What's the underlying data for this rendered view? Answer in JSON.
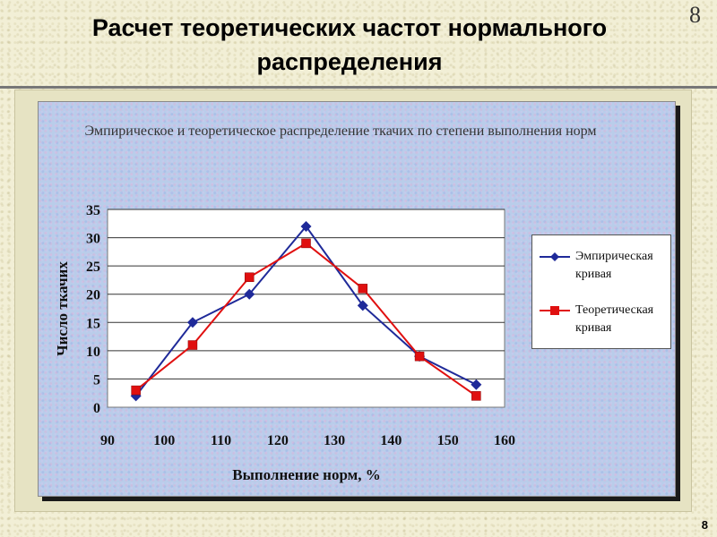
{
  "slide": {
    "title": "Расчет теоретических частот нормального распределения",
    "page_number_top": "8",
    "page_number_bottom": "8"
  },
  "chart_data": {
    "type": "line",
    "title": "Эмпирическое и теоретическое распределение ткачих по степени выполнения норм",
    "xlabel": "Выполнение норм, %",
    "ylabel": "Число ткачих",
    "xlim": [
      90,
      160
    ],
    "ylim": [
      0,
      35
    ],
    "x_ticks": [
      90,
      100,
      110,
      120,
      130,
      140,
      150,
      160
    ],
    "y_ticks": [
      0,
      5,
      10,
      15,
      20,
      25,
      30,
      35
    ],
    "x": [
      95,
      105,
      115,
      125,
      135,
      145,
      155
    ],
    "grid": "horizontal",
    "legend_position": "right",
    "series": [
      {
        "name": "Эмпирическая кривая",
        "values": [
          2,
          15,
          20,
          32,
          18,
          9,
          4
        ],
        "color": "#1f2a99",
        "marker": "diamond"
      },
      {
        "name": "Теоретическая кривая",
        "values": [
          3,
          11,
          23,
          29,
          21,
          9,
          2
        ],
        "color": "#e01010",
        "marker": "square"
      }
    ]
  }
}
